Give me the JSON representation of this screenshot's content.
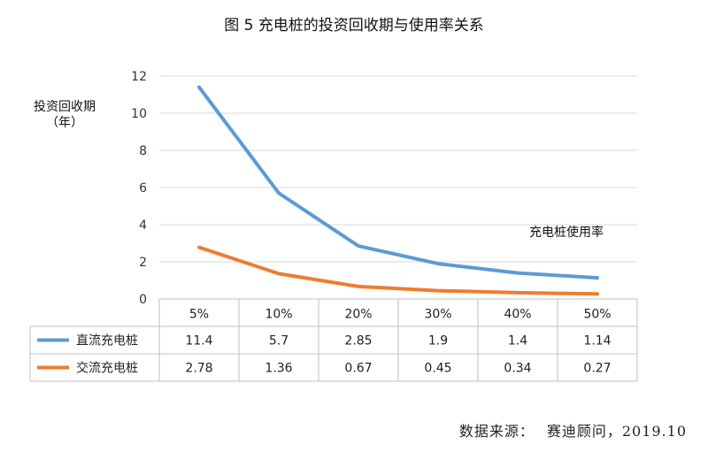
{
  "chart_data": {
    "type": "line",
    "title": "图 5 充电桩的投资回收期与使用率关系",
    "ylabel_line1": "投资回收期",
    "ylabel_line2": "（年）",
    "xlabel": "充电桩使用率",
    "categories": [
      "5%",
      "10%",
      "20%",
      "30%",
      "40%",
      "50%"
    ],
    "ylim": [
      0,
      12
    ],
    "yticks": [
      0,
      2,
      4,
      6,
      8,
      10,
      12
    ],
    "grid": true,
    "legend": "table-bottom",
    "series": [
      {
        "name": "直流充电桩",
        "values": [
          11.4,
          5.7,
          2.85,
          1.9,
          1.4,
          1.14
        ],
        "labels": [
          "11.4",
          "5.7",
          "2.85",
          "1.9",
          "1.4",
          "1.14"
        ],
        "color": "#5b9bd5"
      },
      {
        "name": "交流充电桩",
        "values": [
          2.78,
          1.36,
          0.67,
          0.45,
          0.34,
          0.27
        ],
        "labels": [
          "2.78",
          "1.36",
          "0.67",
          "0.45",
          "0.34",
          "0.27"
        ],
        "color": "#ed7d31"
      }
    ]
  },
  "source": {
    "label": "数据来源：",
    "value": "赛迪顾问，2019.10"
  }
}
